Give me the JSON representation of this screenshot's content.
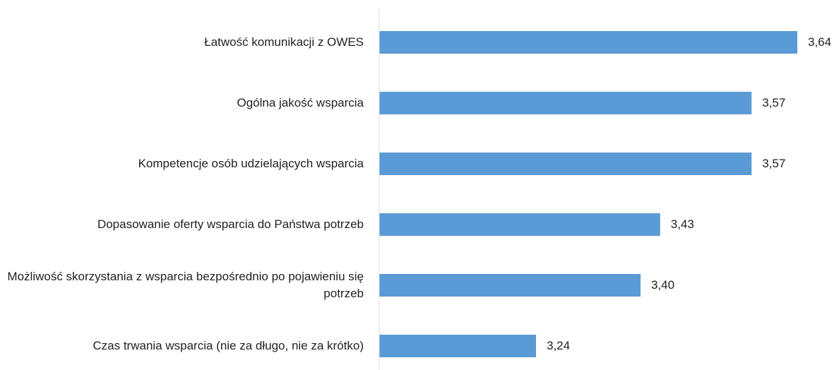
{
  "chart_data": {
    "type": "barh",
    "categories": [
      "Łatwość komunikacji z OWES",
      "Ogólna jakość wsparcia",
      "Kompetencje osób udzielających wsparcia",
      "Dopasowanie oferty wsparcia do Państwa potrzeb",
      "Możliwość skorzystania z wsparcia bezpośrednio po pojawieniu się potrzeb",
      "Czas trwania wsparcia (nie za długo, nie za krótko)"
    ],
    "values": [
      3.64,
      3.57,
      3.57,
      3.43,
      3.4,
      3.24
    ],
    "value_labels": [
      "3,64",
      "3,57",
      "3,57",
      "3,43",
      "3,40",
      "3,24"
    ],
    "color": "#5b9bd5",
    "xlim": [
      3,
      3.7
    ]
  }
}
